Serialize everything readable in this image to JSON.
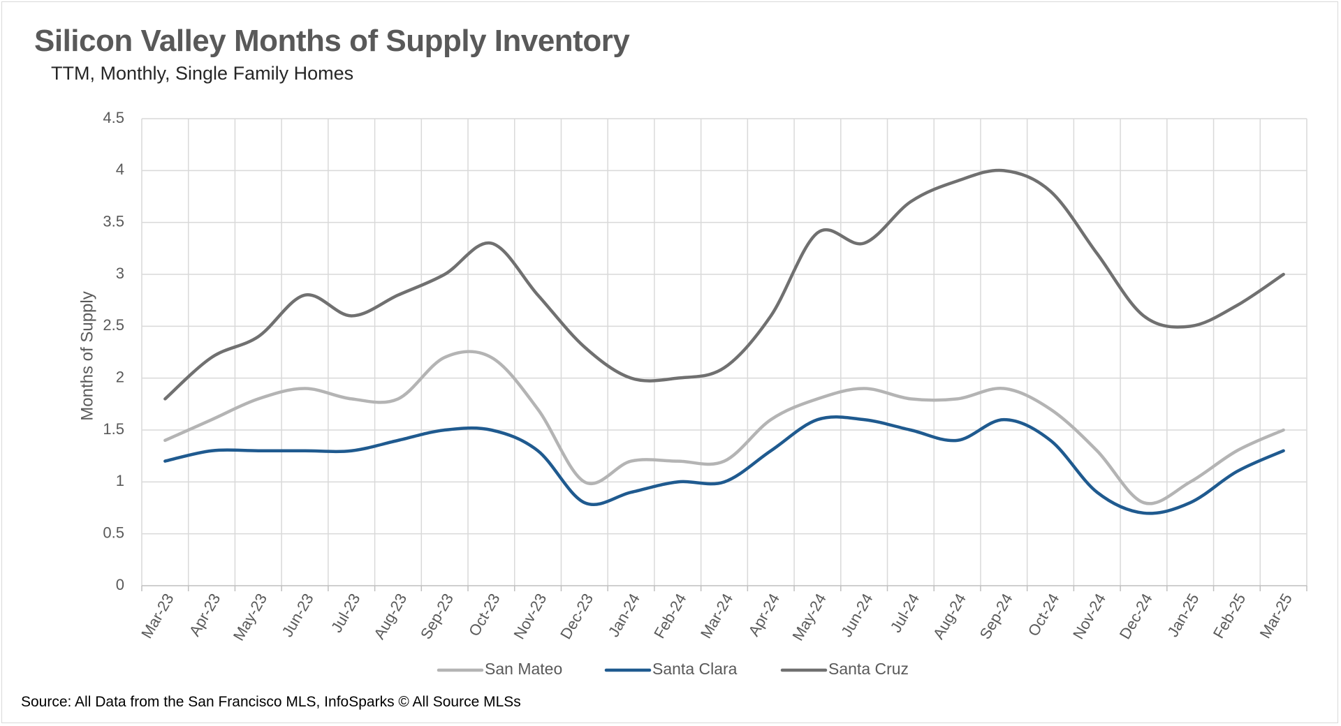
{
  "header": {
    "title": "Silicon Valley Months of Supply Inventory",
    "subtitle": "TTM, Monthly, Single Family Homes"
  },
  "footer": {
    "source": "Source: All Data from the San Francisco MLS, InfoSparks © All Source MLSs"
  },
  "chart_data": {
    "type": "line",
    "smooth": true,
    "title": "Silicon Valley Months of Supply Inventory",
    "subtitle": "TTM, Monthly, Single Family Homes",
    "xlabel": "",
    "ylabel": "Months of Supply",
    "ylim": [
      0,
      4.5
    ],
    "y_ticks": [
      "0",
      "0.5",
      "1",
      "1.5",
      "2",
      "2.5",
      "3",
      "3.5",
      "4",
      "4.5"
    ],
    "grid": true,
    "legend_position": "bottom",
    "categories": [
      "Mar-23",
      "Apr-23",
      "May-23",
      "Jun-23",
      "Jul-23",
      "Aug-23",
      "Sep-23",
      "Oct-23",
      "Nov-23",
      "Dec-23",
      "Jan-24",
      "Feb-24",
      "Mar-24",
      "Apr-24",
      "May-24",
      "Jun-24",
      "Jul-24",
      "Aug-24",
      "Sep-24",
      "Oct-24",
      "Nov-24",
      "Dec-24",
      "Jan-25",
      "Feb-25",
      "Mar-25"
    ],
    "series": [
      {
        "name": "San Mateo",
        "color": "#b4b4b4",
        "values": [
          1.4,
          1.6,
          1.8,
          1.9,
          1.8,
          1.8,
          2.2,
          2.2,
          1.7,
          1.0,
          1.2,
          1.2,
          1.2,
          1.6,
          1.8,
          1.9,
          1.8,
          1.8,
          1.9,
          1.7,
          1.3,
          0.8,
          1.0,
          1.3,
          1.5
        ]
      },
      {
        "name": "Santa Clara",
        "color": "#1f5a8f",
        "values": [
          1.2,
          1.3,
          1.3,
          1.3,
          1.3,
          1.4,
          1.5,
          1.5,
          1.3,
          0.8,
          0.9,
          1.0,
          1.0,
          1.3,
          1.6,
          1.6,
          1.5,
          1.4,
          1.6,
          1.4,
          0.9,
          0.7,
          0.8,
          1.1,
          1.3
        ]
      },
      {
        "name": "Santa Cruz",
        "color": "#707070",
        "values": [
          1.8,
          2.2,
          2.4,
          2.8,
          2.6,
          2.8,
          3.0,
          3.3,
          2.8,
          2.3,
          2.0,
          2.0,
          2.1,
          2.6,
          3.4,
          3.3,
          3.7,
          3.9,
          4.0,
          3.8,
          3.2,
          2.6,
          2.5,
          2.7,
          3.0
        ]
      }
    ]
  }
}
